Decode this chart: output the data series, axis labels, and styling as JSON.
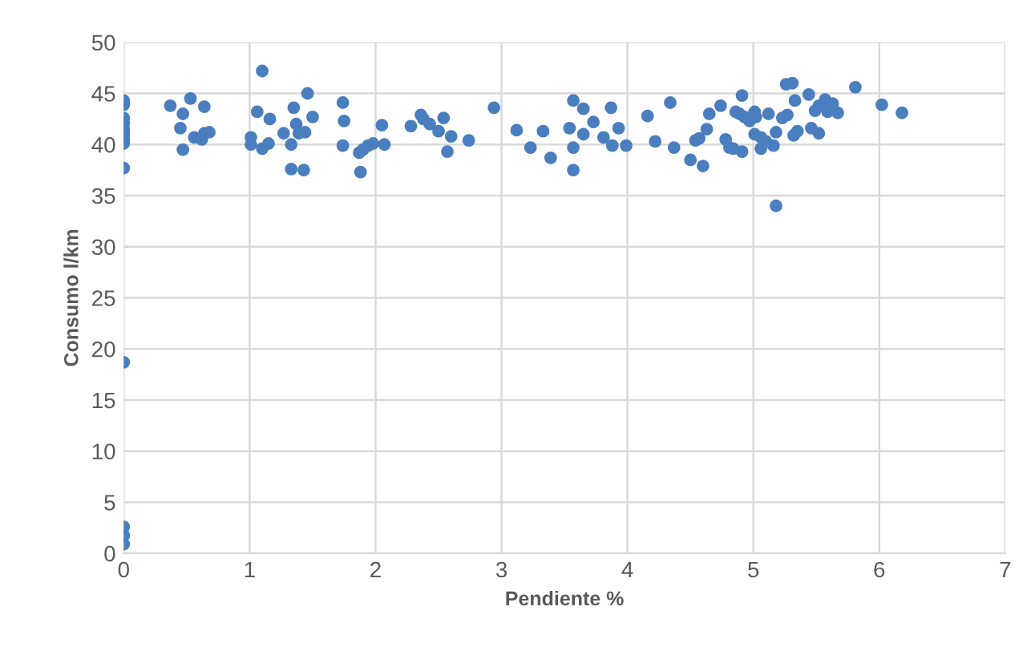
{
  "chart_data": {
    "type": "scatter",
    "xlabel": "Pendiente %",
    "ylabel": "Consumo l/km",
    "xlim": [
      0,
      7
    ],
    "xticks": [
      0,
      1,
      2,
      3,
      4,
      5,
      6,
      7
    ],
    "ylim": [
      0,
      50
    ],
    "yticks": [
      0,
      5,
      10,
      15,
      20,
      25,
      30,
      35,
      40,
      45,
      50
    ],
    "grid": true,
    "marker": "circle",
    "legend": false,
    "series": [
      {
        "color": "#4a7ebf",
        "x": [
          0,
          0,
          0,
          0,
          0,
          0,
          0,
          0,
          0,
          0,
          0,
          0,
          0,
          0.37,
          0.53,
          0.64,
          0.47,
          0.45,
          0.47,
          0.56,
          0.62,
          0.64,
          0.68,
          1.01,
          1.01,
          1.06,
          1.1,
          1.1,
          1.15,
          1.16,
          1.27,
          1.33,
          1.35,
          1.37,
          1.39,
          1.44,
          1.46,
          1.5,
          1.33,
          1.43,
          1.74,
          1.75,
          1.74,
          1.87,
          1.9,
          1.94,
          1.98,
          1.88,
          2.05,
          2.07,
          2.28,
          2.36,
          2.38,
          2.43,
          2.54,
          2.5,
          2.6,
          2.57,
          2.74,
          2.94,
          3.12,
          3.23,
          3.33,
          3.39,
          3.54,
          3.57,
          3.65,
          3.57,
          3.57,
          3.65,
          3.73,
          3.87,
          3.81,
          3.88,
          3.93,
          3.99,
          4.16,
          4.34,
          4.22,
          4.37,
          4.5,
          4.6,
          4.54,
          4.57,
          4.63,
          4.65,
          4.74,
          4.78,
          4.81,
          4.84,
          4.91,
          4.91,
          4.86,
          4.89,
          4.93,
          4.97,
          5.01,
          5.02,
          5.12,
          5.18,
          5.16,
          5.06,
          5.01,
          5.06,
          5.1,
          5.18,
          5.23,
          5.27,
          5.26,
          5.31,
          5.33,
          5.44,
          5.32,
          5.35,
          5.46,
          5.52,
          5.49,
          5.52,
          5.57,
          5.59,
          5.63,
          5.67,
          5.81,
          6.02,
          6.18
        ],
        "values": [
          44.3,
          43.9,
          42.6,
          42.1,
          41.5,
          41.0,
          40.5,
          40.1,
          37.7,
          18.7,
          0.9,
          1.75,
          2.6,
          43.8,
          44.5,
          43.7,
          43.0,
          41.6,
          39.5,
          40.7,
          40.5,
          41.1,
          41.2,
          40.7,
          40.0,
          43.2,
          47.2,
          39.6,
          40.1,
          42.5,
          41.1,
          40.0,
          43.6,
          42.0,
          41.1,
          41.2,
          45.0,
          42.7,
          37.6,
          37.5,
          44.1,
          42.3,
          39.9,
          39.2,
          39.5,
          39.9,
          40.1,
          37.3,
          41.9,
          40.0,
          41.8,
          42.9,
          42.5,
          42.0,
          42.6,
          41.3,
          40.8,
          39.3,
          40.4,
          43.6,
          41.4,
          39.7,
          41.3,
          38.7,
          41.6,
          44.3,
          43.5,
          39.7,
          37.5,
          41.0,
          42.2,
          43.6,
          40.7,
          39.9,
          41.6,
          39.9,
          42.8,
          44.1,
          40.3,
          39.7,
          38.5,
          37.9,
          40.4,
          40.6,
          41.5,
          43.0,
          43.8,
          40.5,
          39.7,
          39.6,
          39.3,
          44.8,
          43.2,
          43.0,
          42.7,
          42.3,
          43.2,
          42.7,
          43.0,
          41.2,
          39.9,
          39.6,
          41.0,
          40.7,
          40.3,
          34.0,
          42.6,
          42.9,
          45.9,
          46.0,
          44.3,
          44.9,
          40.9,
          41.3,
          41.6,
          41.1,
          43.3,
          43.8,
          44.4,
          43.2,
          44.0,
          43.1,
          45.6,
          43.9,
          43.1
        ]
      }
    ]
  }
}
